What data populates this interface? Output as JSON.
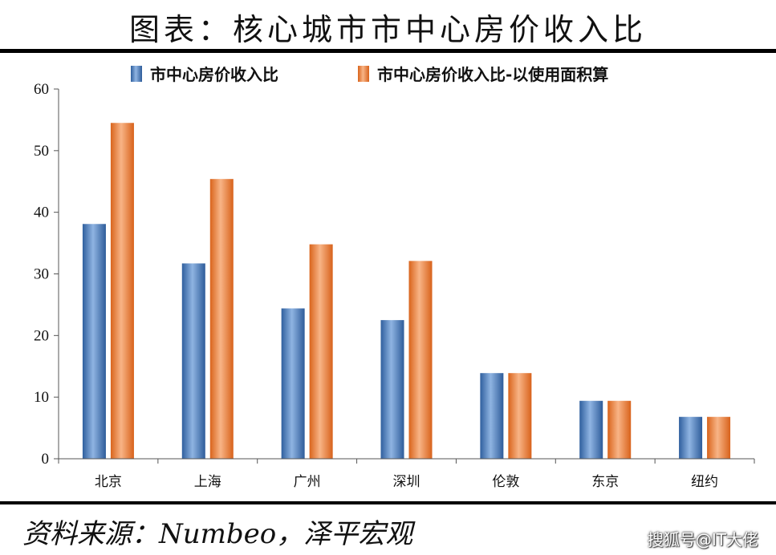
{
  "title": "图表：核心城市市中心房价收入比",
  "source": "资料来源：Numbeo，泽平宏观",
  "watermark": "搜狐号@IT大佬",
  "colors": {
    "series1": "#3f72b3",
    "series2": "#ed7d31"
  },
  "chart_data": {
    "type": "bar",
    "categories": [
      "北京",
      "上海",
      "广州",
      "深圳",
      "伦敦",
      "东京",
      "纽约"
    ],
    "series": [
      {
        "name": "市中心房价收入比",
        "values": [
          38.1,
          31.7,
          24.4,
          22.5,
          13.9,
          9.4,
          6.8
        ]
      },
      {
        "name": "市中心房价收入比-以使用面积算",
        "values": [
          54.5,
          45.4,
          34.8,
          32.1,
          13.9,
          9.4,
          6.8
        ]
      }
    ],
    "ylim": [
      0,
      60
    ],
    "yticks": [
      0,
      10,
      20,
      30,
      40,
      50,
      60
    ],
    "grid": false,
    "legend": "top"
  }
}
